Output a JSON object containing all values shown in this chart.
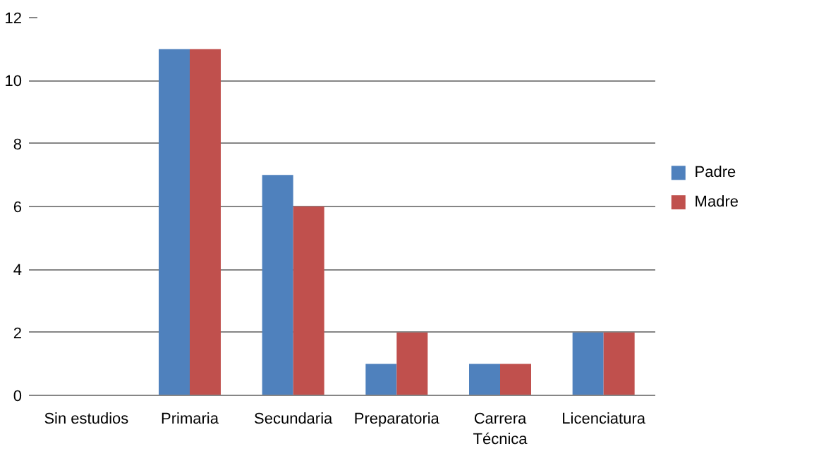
{
  "chart_data": {
    "type": "bar",
    "categories": [
      "Sin estudios",
      "Primaria",
      "Secundaria",
      "Preparatoria",
      "Carrera Técnica",
      "Licenciatura"
    ],
    "series": [
      {
        "name": "Padre",
        "color": "#4f81bd",
        "values": [
          0,
          11,
          7,
          1,
          1,
          2
        ]
      },
      {
        "name": "Madre",
        "color": "#c0504d",
        "values": [
          0,
          11,
          6,
          2,
          1,
          2
        ]
      }
    ],
    "ylim": [
      0,
      12
    ],
    "yticks": [
      0,
      2,
      4,
      6,
      8,
      10,
      12
    ],
    "grid": "y",
    "legend": "right"
  }
}
